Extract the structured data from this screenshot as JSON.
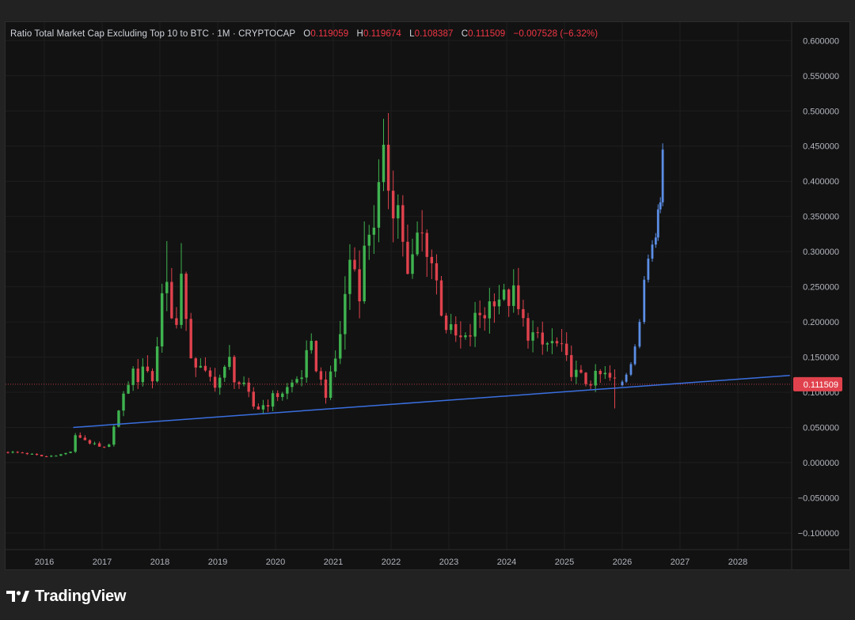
{
  "header": {
    "title": "Ratio Total Market Cap Excluding Top 10 to BTC · 1M · CRYPTOCAP",
    "open_label": "O",
    "open": "0.119059",
    "high_label": "H",
    "high": "0.119674",
    "low_label": "L",
    "low": "0.108387",
    "close_label": "C",
    "close": "0.111509",
    "change": "−0.007528 (−6.32%)"
  },
  "price_tag": "0.111509",
  "brand": "TradingView",
  "colors": {
    "up": "#26a69a",
    "up_candle": "#3fb34f",
    "down": "#e0424d",
    "projection": "#5b8ee6",
    "trendline": "#3a6fe0",
    "price_line": "#e0424d",
    "background": "#121212",
    "frame": "#222222"
  },
  "chart_data": {
    "type": "candlestick",
    "title": "Ratio Total Market Cap Excluding Top 10 to BTC",
    "interval": "1M",
    "source": "CRYPTOCAP",
    "ylim": [
      -0.11,
      0.61
    ],
    "xlim": [
      2015.35,
      2029.0
    ],
    "y_ticks": [
      "0.600000",
      "0.550000",
      "0.500000",
      "0.450000",
      "0.400000",
      "0.350000",
      "0.300000",
      "0.250000",
      "0.200000",
      "0.150000",
      "0.100000",
      "0.050000",
      "0.000000",
      "−0.050000",
      "−0.100000"
    ],
    "y_tick_values": [
      0.6,
      0.55,
      0.5,
      0.45,
      0.4,
      0.35,
      0.3,
      0.25,
      0.2,
      0.15,
      0.1,
      0.05,
      0.0,
      -0.05,
      -0.1
    ],
    "x_ticks": [
      "2016",
      "2017",
      "2018",
      "2019",
      "2020",
      "2021",
      "2022",
      "2023",
      "2024",
      "2025",
      "2026",
      "2027",
      "2028"
    ],
    "x_tick_values": [
      2016,
      2017,
      2018,
      2019,
      2020,
      2021,
      2022,
      2023,
      2024,
      2025,
      2026,
      2027,
      2028
    ],
    "last_price": 0.111509,
    "grid": true,
    "trendline": {
      "start": [
        2016.5,
        0.05
      ],
      "end": [
        2028.9,
        0.124
      ]
    },
    "anchors": [
      [
        2015.37,
        0.015
      ],
      [
        2015.6,
        0.014
      ],
      [
        2015.85,
        0.011
      ],
      [
        2016.0,
        0.008
      ],
      [
        2016.3,
        0.012
      ],
      [
        2016.45,
        0.015
      ],
      [
        2016.55,
        0.04
      ],
      [
        2016.75,
        0.03
      ],
      [
        2017.0,
        0.02
      ],
      [
        2017.15,
        0.025
      ],
      [
        2017.2,
        0.055
      ],
      [
        2017.35,
        0.085
      ],
      [
        2017.5,
        0.13
      ],
      [
        2017.65,
        0.12
      ],
      [
        2017.8,
        0.14
      ],
      [
        2017.9,
        0.11
      ],
      [
        2018.0,
        0.21
      ],
      [
        2018.08,
        0.29
      ],
      [
        2018.15,
        0.24
      ],
      [
        2018.25,
        0.17
      ],
      [
        2018.35,
        0.28
      ],
      [
        2018.45,
        0.19
      ],
      [
        2018.55,
        0.15
      ],
      [
        2018.75,
        0.125
      ],
      [
        2018.95,
        0.115
      ],
      [
        2019.1,
        0.125
      ],
      [
        2019.2,
        0.145
      ],
      [
        2019.3,
        0.12
      ],
      [
        2019.5,
        0.1
      ],
      [
        2019.65,
        0.075
      ],
      [
        2019.85,
        0.085
      ],
      [
        2020.0,
        0.095
      ],
      [
        2020.2,
        0.105
      ],
      [
        2020.45,
        0.125
      ],
      [
        2020.6,
        0.165
      ],
      [
        2020.7,
        0.14
      ],
      [
        2020.85,
        0.095
      ],
      [
        2021.0,
        0.13
      ],
      [
        2021.15,
        0.2
      ],
      [
        2021.3,
        0.3
      ],
      [
        2021.45,
        0.25
      ],
      [
        2021.6,
        0.33
      ],
      [
        2021.75,
        0.36
      ],
      [
        2021.9,
        0.43
      ],
      [
        2022.0,
        0.38
      ],
      [
        2022.15,
        0.36
      ],
      [
        2022.3,
        0.25
      ],
      [
        2022.45,
        0.32
      ],
      [
        2022.6,
        0.32
      ],
      [
        2022.75,
        0.27
      ],
      [
        2022.9,
        0.21
      ],
      [
        2023.0,
        0.185
      ],
      [
        2023.15,
        0.175
      ],
      [
        2023.3,
        0.17
      ],
      [
        2023.5,
        0.21
      ],
      [
        2023.65,
        0.215
      ],
      [
        2023.8,
        0.245
      ],
      [
        2023.95,
        0.23
      ],
      [
        2024.1,
        0.24
      ],
      [
        2024.25,
        0.2
      ],
      [
        2024.45,
        0.18
      ],
      [
        2024.6,
        0.165
      ],
      [
        2024.75,
        0.17
      ],
      [
        2024.9,
        0.165
      ],
      [
        2025.05,
        0.14
      ],
      [
        2025.2,
        0.125
      ],
      [
        2025.35,
        0.115
      ],
      [
        2025.5,
        0.118
      ],
      [
        2025.65,
        0.125
      ],
      [
        2025.8,
        0.118
      ],
      [
        2025.92,
        0.112
      ]
    ],
    "projection": [
      [
        2026.0,
        0.115
      ],
      [
        2026.07,
        0.125
      ],
      [
        2026.15,
        0.14
      ],
      [
        2026.22,
        0.165
      ],
      [
        2026.3,
        0.2
      ],
      [
        2026.38,
        0.26
      ],
      [
        2026.45,
        0.29
      ],
      [
        2026.52,
        0.31
      ],
      [
        2026.58,
        0.32
      ],
      [
        2026.62,
        0.36
      ],
      [
        2026.66,
        0.37
      ],
      [
        2026.7,
        0.445
      ]
    ]
  }
}
